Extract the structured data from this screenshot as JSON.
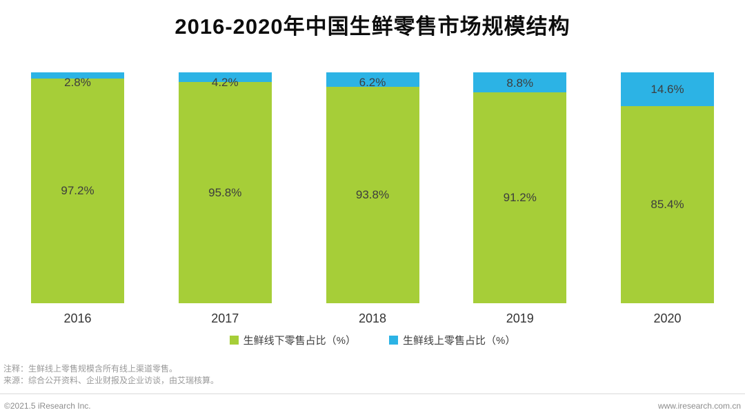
{
  "title": "2016-2020年中国生鲜零售市场规模结构",
  "chart_data": {
    "type": "bar",
    "stacked": true,
    "title": "2016-2020年中国生鲜零售市场规模结构",
    "categories": [
      "2016",
      "2017",
      "2018",
      "2019",
      "2020"
    ],
    "series": [
      {
        "name": "生鲜线下零售占比（%）",
        "color": "#a6ce38",
        "values": [
          97.2,
          95.8,
          93.8,
          91.2,
          85.4
        ]
      },
      {
        "name": "生鲜线上零售占比（%）",
        "color": "#2cb3e5",
        "values": [
          2.8,
          4.2,
          6.2,
          8.8,
          14.6
        ]
      }
    ],
    "ylim": [
      0,
      100
    ],
    "value_label_suffix": "%",
    "grid": false,
    "legend_position": "bottom"
  },
  "notes": {
    "line1": "注释：生鲜线上零售规模含所有线上渠道零售。",
    "line2": "来源：综合公开资料、企业财报及企业访谈，由艾瑞核算。"
  },
  "footer": {
    "left": "©2021.5 iResearch Inc.",
    "right": "www.iresearch.com.cn"
  }
}
